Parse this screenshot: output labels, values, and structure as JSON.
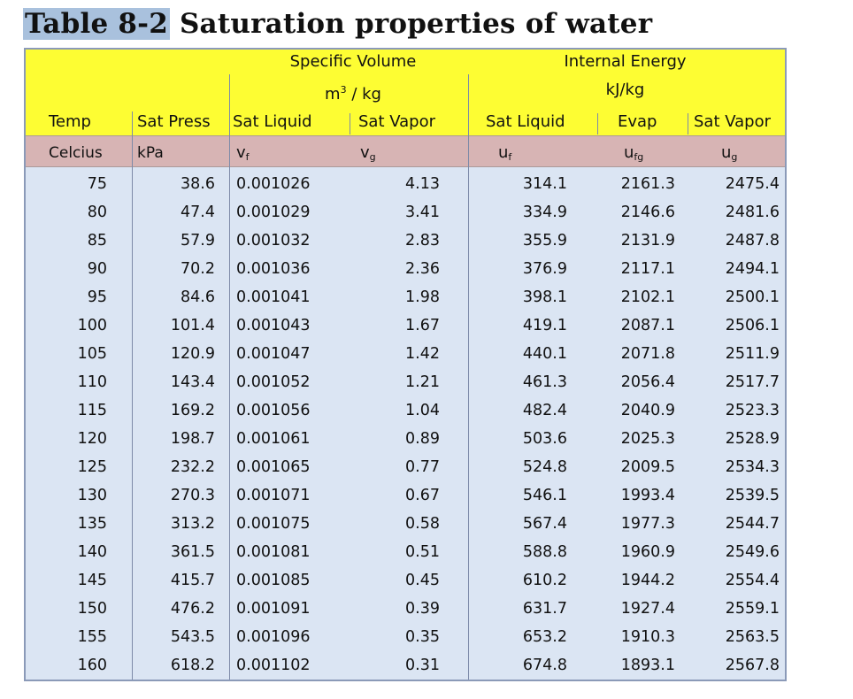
{
  "title": {
    "tag": "Table 8-2",
    "text": "Saturation properties of water"
  },
  "header": {
    "groups": {
      "specific_volume": "Specific Volume",
      "specific_volume_unit_prefix": "m",
      "specific_volume_unit_power": "3",
      "specific_volume_unit_suffix": " / kg",
      "internal_energy": "Internal Energy",
      "internal_energy_unit": "kJ/kg"
    },
    "columns": [
      "Temp",
      "Sat Press",
      "Sat Liquid",
      "Sat Vapor",
      "Sat Liquid",
      "Evap",
      "Sat Vapor"
    ],
    "units": {
      "temp": "Celcius",
      "press": "kPa",
      "vf_base": "v",
      "vf_sub": "f",
      "vg_base": "v",
      "vg_sub": "g",
      "uf_base": "u",
      "uf_sub": "f",
      "ufg_base": "u",
      "ufg_sub": "fg",
      "ug_base": "u",
      "ug_sub": "g"
    }
  },
  "rows": [
    [
      "75",
      "38.6",
      "0.001026",
      "4.13",
      "314.1",
      "2161.3",
      "2475.4"
    ],
    [
      "80",
      "47.4",
      "0.001029",
      "3.41",
      "334.9",
      "2146.6",
      "2481.6"
    ],
    [
      "85",
      "57.9",
      "0.001032",
      "2.83",
      "355.9",
      "2131.9",
      "2487.8"
    ],
    [
      "90",
      "70.2",
      "0.001036",
      "2.36",
      "376.9",
      "2117.1",
      "2494.1"
    ],
    [
      "95",
      "84.6",
      "0.001041",
      "1.98",
      "398.1",
      "2102.1",
      "2500.1"
    ],
    [
      "100",
      "101.4",
      "0.001043",
      "1.67",
      "419.1",
      "2087.1",
      "2506.1"
    ],
    [
      "105",
      "120.9",
      "0.001047",
      "1.42",
      "440.1",
      "2071.8",
      "2511.9"
    ],
    [
      "110",
      "143.4",
      "0.001052",
      "1.21",
      "461.3",
      "2056.4",
      "2517.7"
    ],
    [
      "115",
      "169.2",
      "0.001056",
      "1.04",
      "482.4",
      "2040.9",
      "2523.3"
    ],
    [
      "120",
      "198.7",
      "0.001061",
      "0.89",
      "503.6",
      "2025.3",
      "2528.9"
    ],
    [
      "125",
      "232.2",
      "0.001065",
      "0.77",
      "524.8",
      "2009.5",
      "2534.3"
    ],
    [
      "130",
      "270.3",
      "0.001071",
      "0.67",
      "546.1",
      "1993.4",
      "2539.5"
    ],
    [
      "135",
      "313.2",
      "0.001075",
      "0.58",
      "567.4",
      "1977.3",
      "2544.7"
    ],
    [
      "140",
      "361.5",
      "0.001081",
      "0.51",
      "588.8",
      "1960.9",
      "2549.6"
    ],
    [
      "145",
      "415.7",
      "0.001085",
      "0.45",
      "610.2",
      "1944.2",
      "2554.4"
    ],
    [
      "150",
      "476.2",
      "0.001091",
      "0.39",
      "631.7",
      "1927.4",
      "2559.1"
    ],
    [
      "155",
      "543.5",
      "0.001096",
      "0.35",
      "653.2",
      "1910.3",
      "2563.5"
    ],
    [
      "160",
      "618.2",
      "0.001102",
      "0.31",
      "674.8",
      "1893.1",
      "2567.8"
    ]
  ]
}
